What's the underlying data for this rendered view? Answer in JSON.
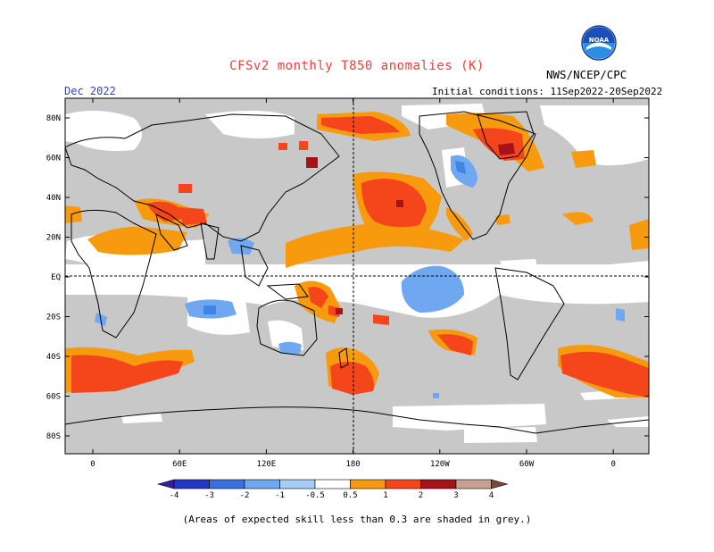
{
  "header": {
    "title": "CFSv2 monthly T850 anomalies (K)",
    "agency": "NWS/NCEP/CPC",
    "month": "Dec 2022",
    "initial_conditions": "Initial conditions: 11Sep2022-20Sep2022",
    "logo_text": "NOAA"
  },
  "map": {
    "lat_labels": [
      "80N",
      "60N",
      "40N",
      "20N",
      "EQ",
      "20S",
      "40S",
      "60S",
      "80S"
    ],
    "lon_labels": [
      "0",
      "60E",
      "120E",
      "180",
      "120W",
      "60W",
      "0"
    ],
    "colors": {
      "low_skill": "#c8c8c8",
      "neutral": "#ffffff",
      "neg_0_5_1": "#6fa8f0",
      "neg_1_2": "#3c86e6",
      "neg_2_3": "#2657cf",
      "pos_0_5_1": "#f79a0e",
      "pos_1_2": "#f4461a",
      "pos_2_3": "#a8101a",
      "pos_3_4": "#c8a092",
      "pos_gt_4": "#7a4a38"
    }
  },
  "colorbar": {
    "labels": [
      "-4",
      "-3",
      "-2",
      "-1",
      "-0.5",
      "0.5",
      "1",
      "2",
      "3",
      "4"
    ],
    "colors": [
      "#3a1aa8",
      "#2238c8",
      "#3a6fe0",
      "#6fa8f0",
      "#a6cdf6",
      "#ffffff",
      "#f79a0e",
      "#f4461a",
      "#a8101a",
      "#c8a092",
      "#7a4a38"
    ]
  },
  "footnote": "(Areas of expected skill less than 0.3 are shaded in grey.)"
}
